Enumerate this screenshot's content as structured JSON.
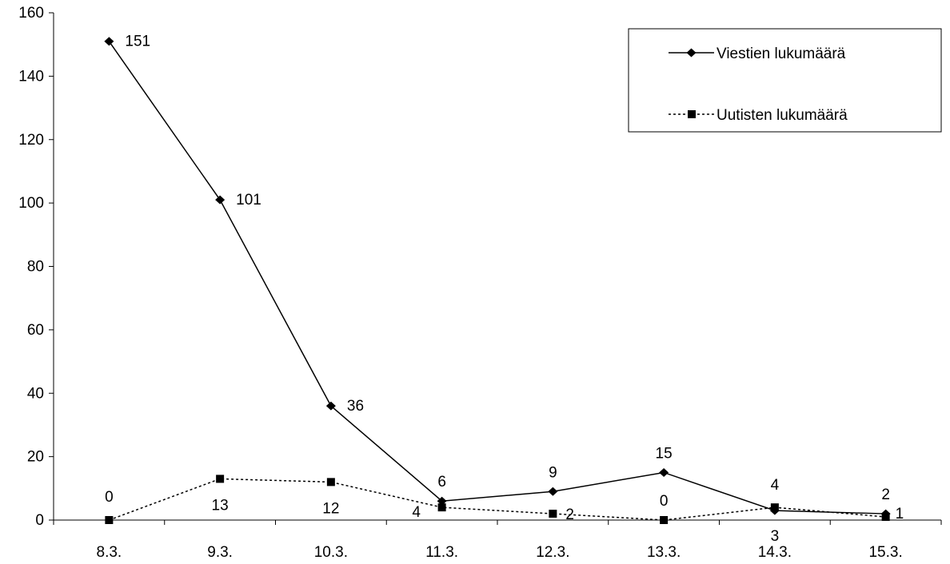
{
  "chart_data": {
    "type": "line",
    "categories": [
      "8.3.",
      "9.3.",
      "10.3.",
      "11.3.",
      "12.3.",
      "13.3.",
      "14.3.",
      "15.3."
    ],
    "series": [
      {
        "name": "Viestien lukumäärä",
        "values": [
          151,
          101,
          36,
          6,
          9,
          15,
          3,
          2
        ],
        "line_style": "solid",
        "marker": "diamond",
        "color": "#000000"
      },
      {
        "name": "Uutisten lukumäärä",
        "values": [
          0,
          13,
          12,
          4,
          2,
          0,
          4,
          1
        ],
        "line_style": "dotted",
        "marker": "square",
        "color": "#000000"
      }
    ],
    "y_ticks": [
      "0",
      "20",
      "40",
      "60",
      "80",
      "100",
      "120",
      "140",
      "160"
    ],
    "ylim": [
      0,
      160
    ],
    "grid": false,
    "legend_position": "top-right",
    "title": "",
    "xlabel": "",
    "ylabel": ""
  }
}
